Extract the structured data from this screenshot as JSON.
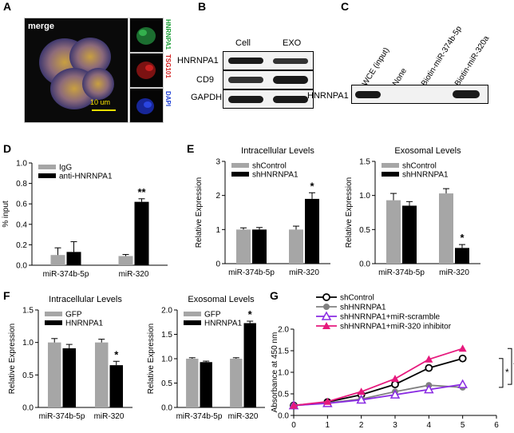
{
  "panels": {
    "A": {
      "label": "A",
      "merge_label": "merge",
      "scale_label": "10 um",
      "channel_labels": [
        {
          "text": "HNRNPA1",
          "color": "#1fa03a"
        },
        {
          "text": "TSG101",
          "color": "#d11a1a"
        },
        {
          "text": "DAPI",
          "color": "#1d3fd6"
        }
      ]
    },
    "B": {
      "label": "B",
      "columns": [
        "Cell",
        "EXO"
      ],
      "rows": [
        "HNRNPA1",
        "CD9",
        "GAPDH"
      ]
    },
    "C": {
      "label": "C",
      "columns": [
        "WCE (input)",
        "None",
        "Biotin-miR-374b-5p",
        "Biotin-miR-320a"
      ],
      "row": "HNRNPA1"
    },
    "D": {
      "label": "D"
    },
    "E": {
      "label": "E"
    },
    "F": {
      "label": "F"
    },
    "G": {
      "label": "G"
    }
  },
  "chart_data": [
    {
      "id": "D",
      "type": "bar",
      "title": "",
      "xlabel": "",
      "ylabel": "% input",
      "categories": [
        "miR-374b-5p",
        "miR-320"
      ],
      "ylim": [
        0,
        1.0
      ],
      "yticks": [
        "0.0",
        "0.2",
        "0.4",
        "0.6",
        "0.8",
        "1.0"
      ],
      "series": [
        {
          "name": "IgG",
          "color": "#a6a6a6",
          "values": [
            0.1,
            0.09
          ],
          "errors": [
            0.07,
            0.015
          ]
        },
        {
          "name": "anti-HNRNPA1",
          "color": "#000000",
          "values": [
            0.13,
            0.62
          ],
          "errors": [
            0.1,
            0.03
          ]
        }
      ],
      "annotations": [
        {
          "category": 1,
          "series": 1,
          "text": "**"
        }
      ],
      "legend": "top-left"
    },
    {
      "id": "E1",
      "type": "bar",
      "title": "Intracellular Levels",
      "xlabel": "",
      "ylabel": "Relative Expression",
      "categories": [
        "miR-374b-5p",
        "miR-320"
      ],
      "ylim": [
        0,
        3
      ],
      "yticks": [
        "0",
        "1",
        "2",
        "3"
      ],
      "series": [
        {
          "name": "shControl",
          "color": "#a6a6a6",
          "values": [
            1.0,
            1.0
          ],
          "errors": [
            0.05,
            0.1
          ]
        },
        {
          "name": "shHNRNPA1",
          "color": "#000000",
          "values": [
            1.0,
            1.9
          ],
          "errors": [
            0.06,
            0.18
          ]
        }
      ],
      "annotations": [
        {
          "category": 1,
          "series": 1,
          "text": "*"
        }
      ],
      "legend": "top-left"
    },
    {
      "id": "E2",
      "type": "bar",
      "title": "Exosomal Levels",
      "xlabel": "",
      "ylabel": "Relative Expression",
      "categories": [
        "miR-374b-5p",
        "miR-320"
      ],
      "ylim": [
        0,
        1.5
      ],
      "yticks": [
        "0.0",
        "0.5",
        "1.0",
        "1.5"
      ],
      "series": [
        {
          "name": "shControl",
          "color": "#a6a6a6",
          "values": [
            0.93,
            1.03
          ],
          "errors": [
            0.1,
            0.07
          ]
        },
        {
          "name": "shHNRNPA1",
          "color": "#000000",
          "values": [
            0.85,
            0.23
          ],
          "errors": [
            0.06,
            0.05
          ]
        }
      ],
      "annotations": [
        {
          "category": 1,
          "series": 1,
          "text": "*"
        }
      ],
      "legend": "top-left"
    },
    {
      "id": "F1",
      "type": "bar",
      "title": "Intracellular Levels",
      "xlabel": "",
      "ylabel": "Relative Expression",
      "categories": [
        "miR-374b-5p",
        "miR-320"
      ],
      "ylim": [
        0,
        1.5
      ],
      "yticks": [
        "0.0",
        "0.5",
        "1.0",
        "1.5"
      ],
      "series": [
        {
          "name": "GFP",
          "color": "#a6a6a6",
          "values": [
            1.0,
            1.0
          ],
          "errors": [
            0.06,
            0.05
          ]
        },
        {
          "name": "HNRNPA1",
          "color": "#000000",
          "values": [
            0.91,
            0.65
          ],
          "errors": [
            0.06,
            0.06
          ]
        }
      ],
      "annotations": [
        {
          "category": 1,
          "series": 1,
          "text": "*"
        }
      ],
      "legend": "top-left"
    },
    {
      "id": "F2",
      "type": "bar",
      "title": "Exosomal Levels",
      "xlabel": "",
      "ylabel": "Relative Expression",
      "categories": [
        "miR-374b-5p",
        "miR-320"
      ],
      "ylim": [
        0,
        2.0
      ],
      "yticks": [
        "0.0",
        "0.5",
        "1.0",
        "1.5",
        "2.0"
      ],
      "series": [
        {
          "name": "GFP",
          "color": "#a6a6a6",
          "values": [
            1.0,
            1.0
          ],
          "errors": [
            0.02,
            0.02
          ]
        },
        {
          "name": "HNRNPA1",
          "color": "#000000",
          "values": [
            0.93,
            1.73
          ],
          "errors": [
            0.02,
            0.04
          ]
        }
      ],
      "annotations": [
        {
          "category": 1,
          "series": 1,
          "text": "*"
        }
      ],
      "legend": "top-left"
    },
    {
      "id": "G",
      "type": "line",
      "title": "",
      "xlabel": "",
      "ylabel": "Absorbance at 450 nm",
      "xlim": [
        0,
        6
      ],
      "ylim": [
        0,
        2.0
      ],
      "xticks": [
        "0",
        "1",
        "2",
        "3",
        "4",
        "5",
        "6"
      ],
      "yticks": [
        "0.0",
        "0.5",
        "1.0",
        "1.5",
        "2.0"
      ],
      "series": [
        {
          "name": "shControl",
          "color": "#000000",
          "marker": "open-circle",
          "x": [
            0,
            1,
            2,
            3,
            4,
            5
          ],
          "values": [
            0.23,
            0.31,
            0.48,
            0.72,
            1.1,
            1.32
          ],
          "errors": [
            0,
            0.02,
            0.03,
            0.04,
            0.05,
            0.05
          ]
        },
        {
          "name": "shHNRNPA1",
          "color": "#808080",
          "marker": "filled-circle",
          "x": [
            0,
            1,
            2,
            3,
            4,
            5
          ],
          "values": [
            0.23,
            0.29,
            0.38,
            0.55,
            0.7,
            0.65
          ],
          "errors": [
            0,
            0.02,
            0.02,
            0.03,
            0.03,
            0.04
          ]
        },
        {
          "name": "shHNRNPA1+miR-scramble",
          "color": "#8a2be2",
          "marker": "open-triangle",
          "x": [
            0,
            1,
            2,
            3,
            4,
            5
          ],
          "values": [
            0.23,
            0.28,
            0.36,
            0.48,
            0.6,
            0.72
          ],
          "errors": [
            0,
            0.02,
            0.02,
            0.03,
            0.05,
            0.04
          ]
        },
        {
          "name": "shHNRNPA1+miR-320 inhibitor",
          "color": "#e6197d",
          "marker": "filled-triangle",
          "x": [
            0,
            1,
            2,
            3,
            4,
            5
          ],
          "values": [
            0.23,
            0.32,
            0.55,
            0.85,
            1.3,
            1.55
          ],
          "errors": [
            0,
            0.02,
            0.03,
            0.04,
            0.07,
            0.04
          ]
        }
      ],
      "significance": [
        "*",
        "*"
      ],
      "legend": "top"
    }
  ]
}
